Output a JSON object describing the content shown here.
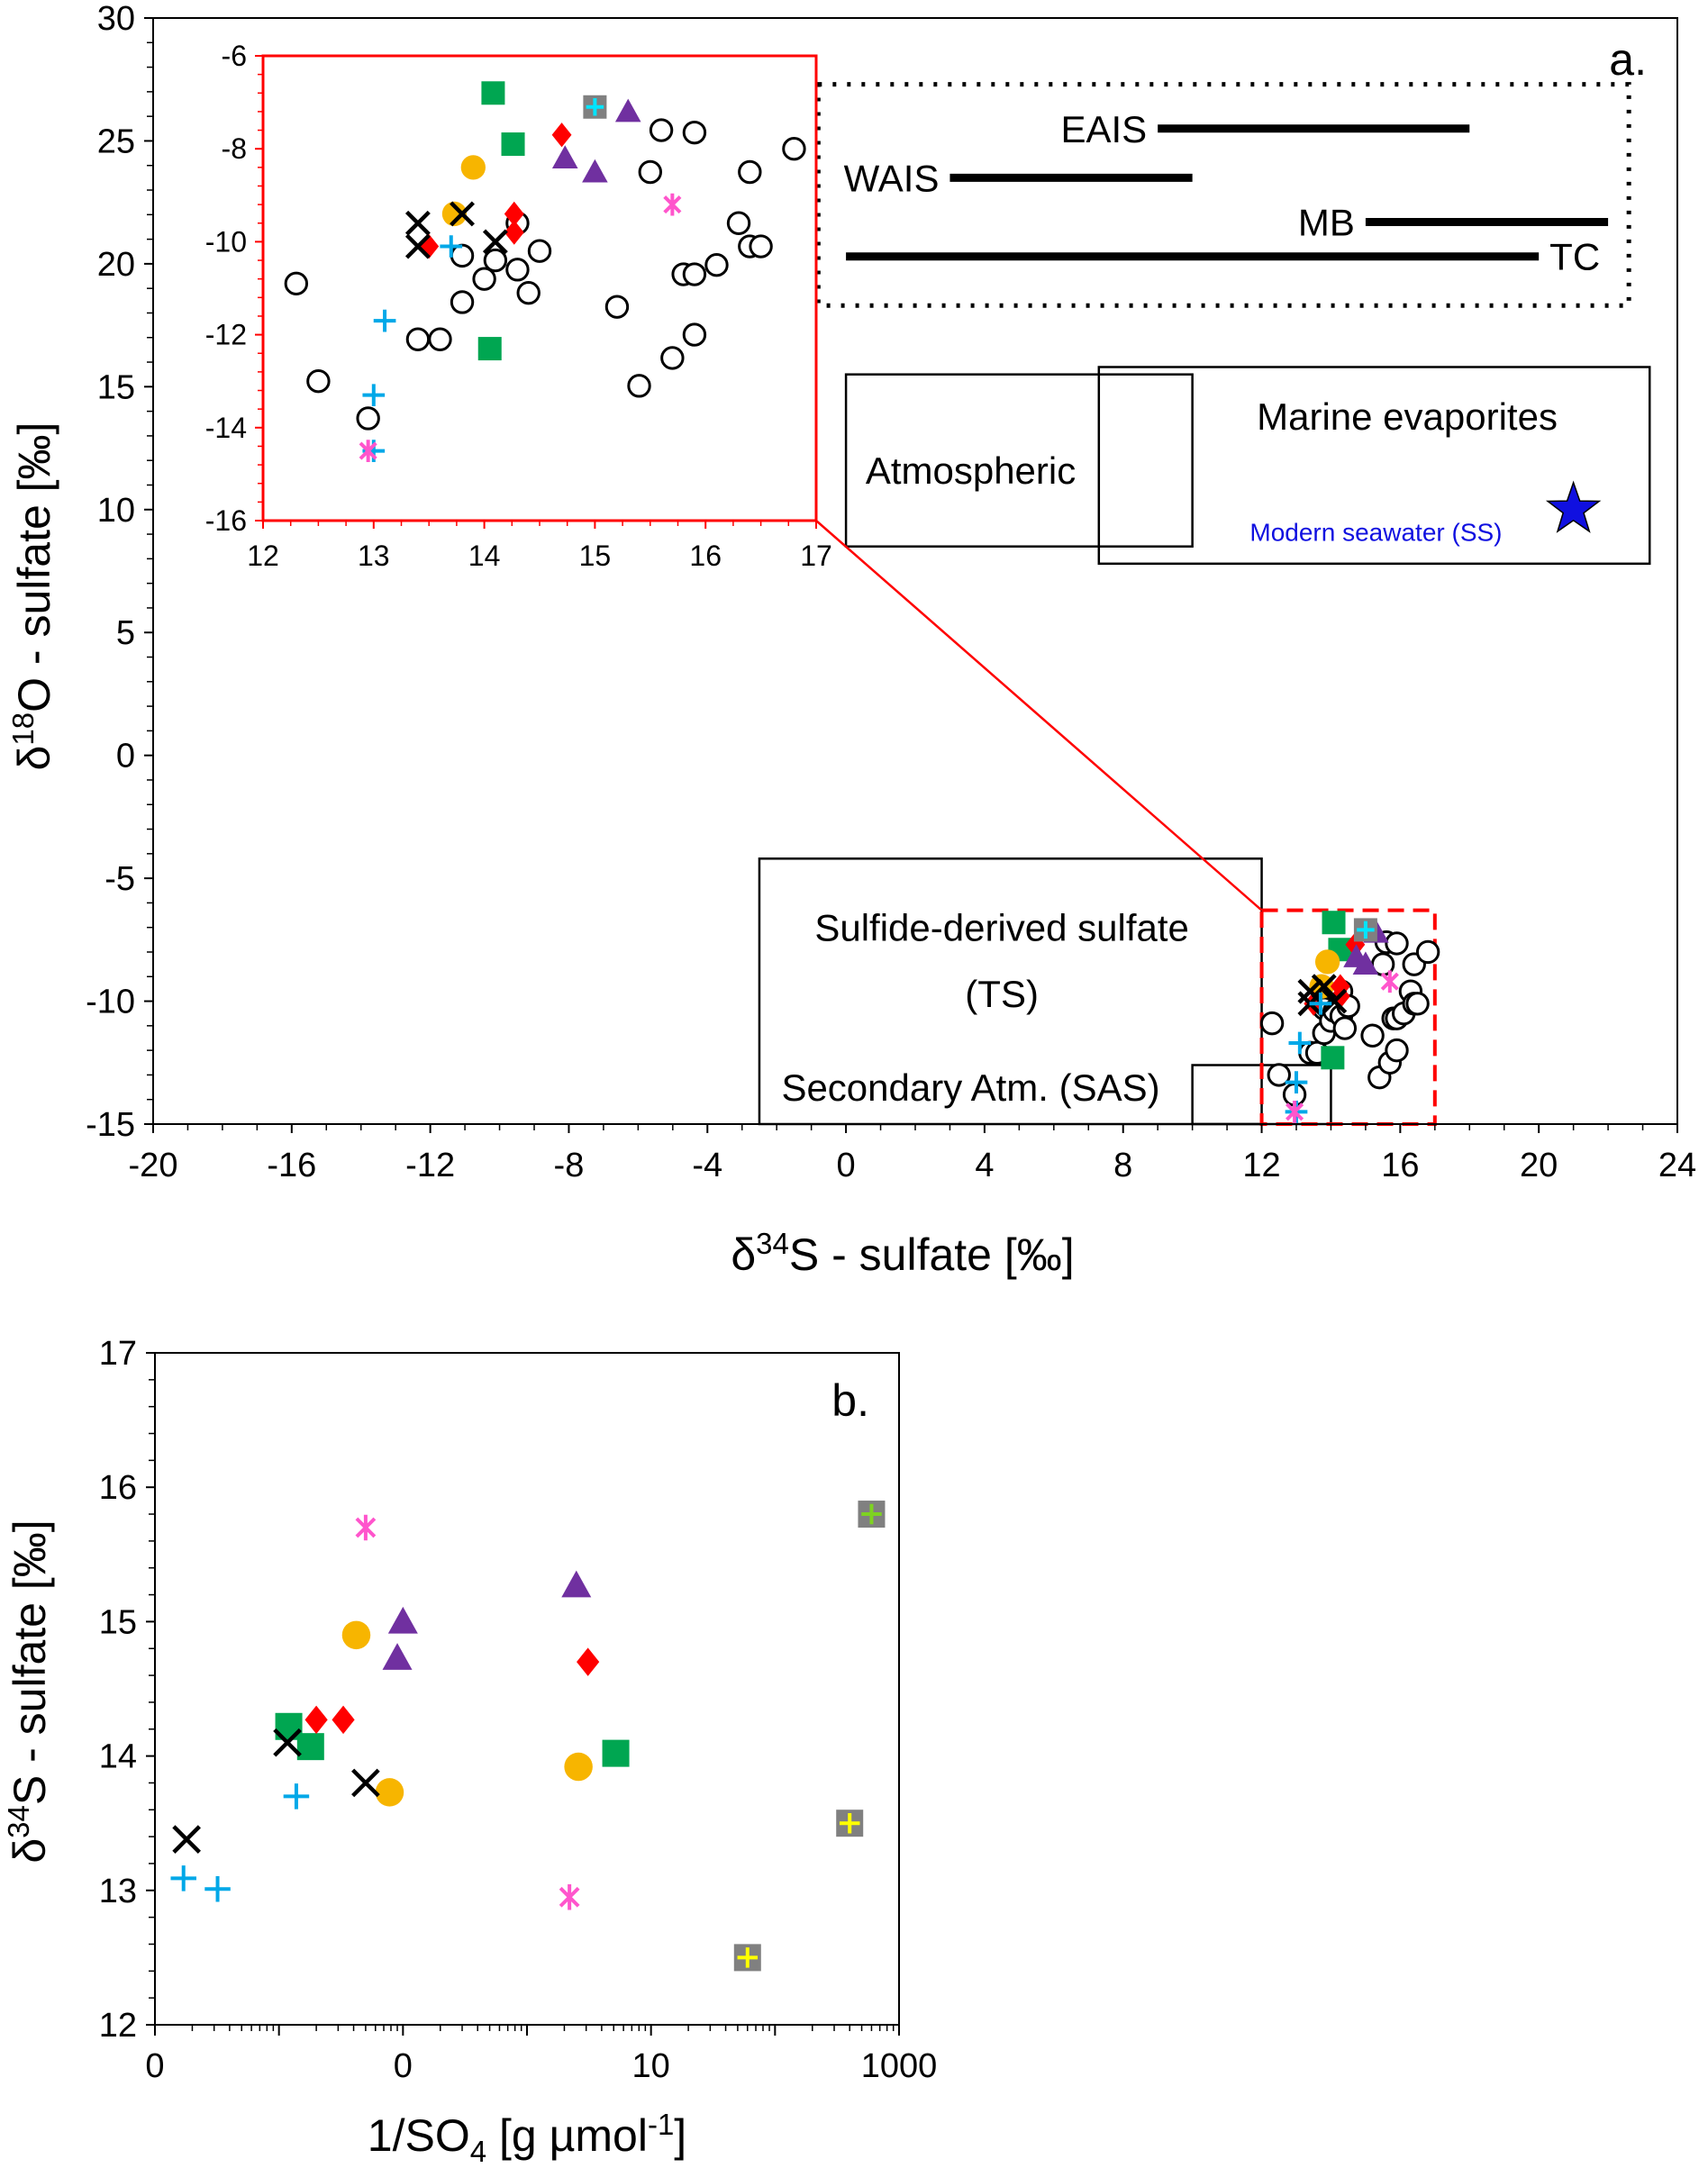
{
  "chart_data": [
    {
      "panel_label": "a.",
      "type": "scatter",
      "xlabel_prefix": "δ",
      "xlabel_sup": "34",
      "xlabel_rest": "S - sulfate [‰]",
      "ylabel_prefix": "δ",
      "ylabel_sup": "18",
      "ylabel_rest": "O - sulfate [‰]",
      "xlim": [
        -20,
        24
      ],
      "ylim": [
        -15,
        30
      ],
      "xticks": [
        -20,
        -16,
        -12,
        -8,
        -4,
        0,
        4,
        8,
        12,
        16,
        20,
        24
      ],
      "yticks": [
        -15,
        -10,
        -5,
        0,
        5,
        10,
        15,
        20,
        25,
        30
      ],
      "regions": [
        {
          "name": "Atmospheric",
          "x": [
            0,
            10
          ],
          "y": [
            8.5,
            15.5
          ]
        },
        {
          "name": "Marine evaporites",
          "x": [
            7.3,
            23.2
          ],
          "y": [
            7.8,
            15.8
          ]
        },
        {
          "name": "Sulfide-derived sulfate",
          "name2": "(TS)",
          "x": [
            -2.5,
            12
          ],
          "y": [
            -15,
            -4.2
          ]
        },
        {
          "name": "Secondary Atm. (SAS)",
          "x": [
            10,
            14
          ],
          "y": [
            -15,
            -12.6
          ]
        }
      ],
      "ranges": [
        {
          "name": "EAIS",
          "x": [
            9,
            18
          ],
          "y": 25.5
        },
        {
          "name": "WAIS",
          "x": [
            3,
            10
          ],
          "y": 23.5
        },
        {
          "name": "MB",
          "x": [
            15,
            22
          ],
          "y": 21.7
        },
        {
          "name": "TC",
          "x": [
            0,
            20
          ],
          "y": 20.3
        }
      ],
      "range_box": {
        "x": [
          -0.8,
          22.6
        ],
        "y": [
          18.3,
          27.3
        ]
      },
      "modern_seawater": {
        "label": "Modern seawater (SS)",
        "x": 21,
        "y": 10,
        "color": "#1010e0"
      },
      "zoom_box": {
        "x": [
          12,
          17
        ],
        "y": [
          -15,
          -6.3
        ]
      },
      "inset": {
        "xlim": [
          12,
          17
        ],
        "ylim": [
          -16,
          -6
        ],
        "xticks": [
          12,
          13,
          14,
          15,
          16,
          17
        ],
        "yticks": [
          -16,
          -14,
          -12,
          -10,
          -8,
          -6
        ]
      },
      "series": [
        {
          "name": "open circles",
          "marker": "circle-open",
          "color": "#000000",
          "x": [
            12.3,
            12.5,
            12.95,
            13.4,
            13.6,
            13.8,
            13.8,
            14.0,
            14.1,
            14.3,
            14.3,
            14.4,
            14.5,
            15.2,
            15.4,
            15.5,
            15.6,
            15.7,
            15.8,
            15.9,
            15.9,
            15.9,
            16.1,
            16.3,
            16.4,
            16.4,
            16.5,
            16.8
          ],
          "y": [
            -10.9,
            -13.0,
            -13.8,
            -12.1,
            -12.1,
            -10.3,
            -11.3,
            -10.8,
            -10.4,
            -9.6,
            -10.6,
            -11.1,
            -10.2,
            -11.4,
            -13.1,
            -8.5,
            -7.6,
            -12.5,
            -10.7,
            -7.65,
            -10.7,
            -12.0,
            -10.5,
            -9.6,
            -8.5,
            -10.1,
            -10.1,
            -8.0
          ]
        },
        {
          "name": "green squares",
          "marker": "square",
          "color": "#00a651",
          "x": [
            14.08,
            14.26,
            14.05
          ],
          "y": [
            -6.8,
            -7.9,
            -12.3
          ]
        },
        {
          "name": "orange circles",
          "marker": "circle",
          "color": "#f7b500",
          "x": [
            13.9,
            13.73
          ],
          "y": [
            -8.4,
            -9.4
          ]
        },
        {
          "name": "red diamonds",
          "marker": "diamond",
          "color": "#ff0000",
          "x": [
            14.7,
            13.5,
            14.27,
            14.27
          ],
          "y": [
            -7.7,
            -10.1,
            -9.4,
            -9.8
          ]
        },
        {
          "name": "purple triangles",
          "marker": "triangle",
          "color": "#7030a0",
          "x": [
            15.3,
            14.73,
            15.0
          ],
          "y": [
            -7.2,
            -8.2,
            -8.5
          ]
        },
        {
          "name": "black x",
          "marker": "x",
          "color": "#000000",
          "x": [
            13.4,
            13.4,
            13.8,
            14.1
          ],
          "y": [
            -9.6,
            -10.1,
            -9.4,
            -10.0
          ]
        },
        {
          "name": "blue plus",
          "marker": "plus",
          "color": "#00a8e8",
          "x": [
            13.7,
            13.1,
            13.0,
            13.0
          ],
          "y": [
            -10.1,
            -11.7,
            -13.3,
            -14.5
          ]
        },
        {
          "name": "pink asterisk",
          "marker": "asterisk",
          "color": "#ff55cc",
          "x": [
            15.7,
            12.95
          ],
          "y": [
            -9.2,
            -14.5
          ]
        },
        {
          "name": "grey square plus",
          "marker": "square-plus",
          "color": "#808080",
          "plus_color": "#00e5ff",
          "x": [
            15.0
          ],
          "y": [
            -7.1
          ]
        }
      ]
    },
    {
      "panel_label": "b.",
      "type": "scatter",
      "xlabel_main": "1/SO",
      "xlabel_sub": "4",
      "xlabel_rest": " [g µmol",
      "xlabel_sup": "-1",
      "xlabel_end": "]",
      "ylabel_prefix": "δ",
      "ylabel_sup": "34",
      "ylabel_rest": "S - sulfate [‰]",
      "xscale": "log",
      "xlim": [
        0.001,
        1000
      ],
      "ylim": [
        12,
        17
      ],
      "xtick_labels": [
        {
          "v": 0.001,
          "label": "0"
        },
        {
          "v": 0.1,
          "label": "0"
        },
        {
          "v": 10,
          "label": "10"
        },
        {
          "v": 1000,
          "label": "1000"
        }
      ],
      "yticks": [
        12,
        13,
        14,
        15,
        16,
        17
      ],
      "series": [
        {
          "name": "green squares",
          "marker": "square",
          "color": "#00a651",
          "x": [
            0.012,
            0.018,
            5.2
          ],
          "y": [
            14.22,
            14.07,
            14.02
          ]
        },
        {
          "name": "orange circles",
          "marker": "circle",
          "color": "#f7b500",
          "x": [
            0.042,
            0.078,
            2.6
          ],
          "y": [
            14.9,
            13.73,
            13.92
          ]
        },
        {
          "name": "red diamonds",
          "marker": "diamond",
          "color": "#ff0000",
          "x": [
            0.02,
            0.033,
            3.1
          ],
          "y": [
            14.27,
            14.27,
            14.7
          ]
        },
        {
          "name": "purple triangles",
          "marker": "triangle",
          "color": "#7030a0",
          "x": [
            0.09,
            0.1,
            2.5
          ],
          "y": [
            14.73,
            15.0,
            15.27
          ]
        },
        {
          "name": "black x",
          "marker": "x",
          "color": "#000000",
          "x": [
            0.0018,
            0.0117,
            0.05
          ],
          "y": [
            13.38,
            14.1,
            13.8
          ]
        },
        {
          "name": "blue plus",
          "marker": "plus",
          "color": "#00a8e8",
          "x": [
            0.0017,
            0.0032,
            0.0138
          ],
          "y": [
            13.09,
            13.01,
            13.7
          ]
        },
        {
          "name": "pink asterisk",
          "marker": "asterisk",
          "color": "#ff55cc",
          "x": [
            0.05,
            2.2
          ],
          "y": [
            15.7,
            12.95
          ]
        },
        {
          "name": "grey square plus (green)",
          "marker": "square-plus",
          "color": "#808080",
          "plus_color": "#7ed321",
          "x": [
            600
          ],
          "y": [
            15.8
          ]
        },
        {
          "name": "grey square plus (yellow)",
          "marker": "square-plus",
          "color": "#808080",
          "plus_color": "#ffff00",
          "x": [
            400,
            60
          ],
          "y": [
            13.5,
            12.5
          ]
        }
      ]
    }
  ]
}
